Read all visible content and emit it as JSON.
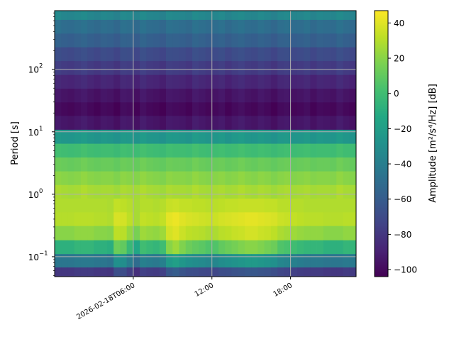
{
  "chart_data": {
    "type": "heatmap",
    "colormap": "viridis",
    "xlabel": "",
    "ylabel": "Period [s]",
    "colorbar_label": "Amplitude [m²/s⁴/Hz] [dB]",
    "xlim": [
      "2026-02-18T00:00",
      "2026-02-18T23:00"
    ],
    "ylim": [
      0.048,
      870
    ],
    "yscale": "log",
    "clim": [
      -104,
      47
    ],
    "grid": true,
    "x_ticks": [
      {
        "time": "2026-02-18T06:00",
        "label": "2026-02-18T06:00"
      },
      {
        "time": "2026-02-18T12:00",
        "label": "12:00"
      },
      {
        "time": "2026-02-18T18:00",
        "label": "18:00"
      }
    ],
    "y_ticks": [
      {
        "value": 100,
        "base": "10",
        "exp": "2"
      },
      {
        "value": 10,
        "base": "10",
        "exp": "1"
      },
      {
        "value": 1,
        "base": "10",
        "exp": "0"
      },
      {
        "value": 0.1,
        "base": "10",
        "exp": "−1"
      }
    ],
    "colorbar_ticks": [
      "40",
      "20",
      "0",
      "−20",
      "−40",
      "−60",
      "−80",
      "−100"
    ],
    "colorbar_tick_values": [
      40,
      20,
      0,
      -20,
      -40,
      -60,
      -80,
      -100
    ],
    "periods": [
      800,
      480,
      290,
      175,
      105,
      63,
      38,
      23,
      14,
      8.3,
      5.0,
      3.0,
      1.8,
      1.1,
      0.66,
      0.4,
      0.24,
      0.14,
      0.087,
      0.052
    ],
    "values": [
      [
        -33,
        -35,
        -36,
        -34,
        -32,
        -35,
        -37,
        -34,
        -35,
        -38,
        -33,
        -34,
        -37,
        -32,
        -35,
        -36,
        -38,
        -33,
        -34,
        -35,
        -37,
        -32,
        -34,
        -36,
        -35,
        -33,
        -37,
        -34,
        -32,
        -35,
        -36,
        -33,
        -35,
        -38,
        -34,
        -33,
        -36,
        -35,
        -33,
        -37,
        -34,
        -35,
        -36,
        -32,
        -35,
        -37
      ],
      [
        -48,
        -50,
        -51,
        -49,
        -47,
        -50,
        -52,
        -49,
        -50,
        -53,
        -48,
        -49,
        -52,
        -47,
        -50,
        -51,
        -53,
        -48,
        -49,
        -50,
        -52,
        -47,
        -49,
        -51,
        -50,
        -48,
        -52,
        -49,
        -47,
        -50,
        -51,
        -48,
        -50,
        -53,
        -49,
        -48,
        -51,
        -50,
        -48,
        -52,
        -49,
        -50,
        -51,
        -47,
        -50,
        -52
      ],
      [
        -56,
        -58,
        -59,
        -57,
        -55,
        -58,
        -60,
        -57,
        -58,
        -61,
        -56,
        -57,
        -60,
        -55,
        -58,
        -59,
        -61,
        -56,
        -57,
        -58,
        -60,
        -55,
        -57,
        -59,
        -58,
        -56,
        -60,
        -57,
        -55,
        -58,
        -59,
        -56,
        -58,
        -61,
        -57,
        -56,
        -59,
        -58,
        -56,
        -60,
        -57,
        -58,
        -59,
        -55,
        -58,
        -60
      ],
      [
        -68,
        -70,
        -71,
        -69,
        -67,
        -70,
        -72,
        -69,
        -70,
        -73,
        -68,
        -69,
        -72,
        -67,
        -70,
        -71,
        -73,
        -68,
        -69,
        -70,
        -72,
        -67,
        -69,
        -71,
        -70,
        -68,
        -72,
        -69,
        -67,
        -70,
        -71,
        -68,
        -70,
        -73,
        -69,
        -68,
        -71,
        -70,
        -68,
        -72,
        -69,
        -70,
        -71,
        -67,
        -70,
        -72
      ],
      [
        -76,
        -78,
        -79,
        -77,
        -75,
        -78,
        -80,
        -77,
        -78,
        -81,
        -76,
        -77,
        -80,
        -75,
        -78,
        -79,
        -81,
        -76,
        -77,
        -78,
        -80,
        -75,
        -77,
        -79,
        -78,
        -76,
        -80,
        -77,
        -75,
        -78,
        -79,
        -76,
        -78,
        -81,
        -77,
        -76,
        -79,
        -78,
        -76,
        -80,
        -77,
        -78,
        -79,
        -75,
        -78,
        -80
      ],
      [
        -86,
        -88,
        -89,
        -87,
        -85,
        -88,
        -90,
        -87,
        -88,
        -91,
        -86,
        -87,
        -90,
        -85,
        -88,
        -89,
        -91,
        -86,
        -87,
        -88,
        -90,
        -85,
        -87,
        -89,
        -88,
        -86,
        -90,
        -87,
        -85,
        -88,
        -89,
        -86,
        -88,
        -91,
        -87,
        -86,
        -89,
        -88,
        -86,
        -90,
        -87,
        -88,
        -89,
        -85,
        -88,
        -90
      ],
      [
        -94,
        -96,
        -97,
        -95,
        -93,
        -96,
        -98,
        -95,
        -96,
        -99,
        -94,
        -95,
        -98,
        -93,
        -96,
        -97,
        -99,
        -94,
        -95,
        -96,
        -98,
        -93,
        -95,
        -97,
        -96,
        -94,
        -98,
        -95,
        -93,
        -96,
        -97,
        -94,
        -96,
        -99,
        -95,
        -94,
        -97,
        -96,
        -94,
        -98,
        -95,
        -96,
        -97,
        -93,
        -96,
        -98
      ],
      [
        -99,
        -101,
        -102,
        -100,
        -98,
        -101,
        -103,
        -100,
        -101,
        -104,
        -99,
        -100,
        -103,
        -98,
        -101,
        -102,
        -104,
        -99,
        -100,
        -101,
        -103,
        -98,
        -100,
        -102,
        -101,
        -99,
        -103,
        -100,
        -98,
        -101,
        -102,
        -99,
        -101,
        -104,
        -100,
        -99,
        -102,
        -101,
        -99,
        -103,
        -100,
        -101,
        -102,
        -98,
        -101,
        -103
      ],
      [
        -93,
        -95,
        -96,
        -94,
        -92,
        -95,
        -97,
        -94,
        -95,
        -98,
        -93,
        -94,
        -97,
        -92,
        -95,
        -96,
        -98,
        -93,
        -94,
        -95,
        -97,
        -92,
        -94,
        -96,
        -95,
        -93,
        -97,
        -94,
        -92,
        -95,
        -96,
        -93,
        -95,
        -98,
        -94,
        -93,
        -96,
        -95,
        -93,
        -97,
        -94,
        -95,
        -96,
        -92,
        -95,
        -97
      ],
      [
        -23,
        -25,
        -26,
        -24,
        -22,
        -25,
        -27,
        -24,
        -25,
        -28,
        -23,
        -24,
        -27,
        -22,
        -25,
        -26,
        -28,
        -23,
        -24,
        -25,
        -27,
        -22,
        -24,
        -26,
        -25,
        -23,
        -27,
        -24,
        -22,
        -25,
        -26,
        -23,
        -25,
        -28,
        -24,
        -23,
        -26,
        -25,
        -23,
        -27,
        -24,
        -25,
        -26,
        -22,
        -25,
        -27
      ],
      [
        1,
        0,
        -1,
        0,
        2,
        0,
        -1,
        0,
        0,
        -2,
        1,
        0,
        -1,
        2,
        0,
        -1,
        -2,
        1,
        0,
        0,
        -1,
        2,
        0,
        -1,
        0,
        1,
        -1,
        0,
        2,
        0,
        -1,
        1,
        0,
        -2,
        0,
        1,
        -1,
        0,
        1,
        -1,
        0,
        0,
        -1,
        2,
        0,
        -1
      ],
      [
        13,
        12,
        11,
        12,
        14,
        12,
        11,
        12,
        12,
        10,
        13,
        12,
        11,
        14,
        12,
        11,
        10,
        13,
        12,
        12,
        11,
        14,
        12,
        11,
        12,
        13,
        11,
        12,
        14,
        12,
        11,
        13,
        12,
        10,
        12,
        13,
        11,
        12,
        13,
        11,
        12,
        12,
        11,
        14,
        12,
        11
      ],
      [
        21,
        20,
        19,
        20,
        22,
        20,
        19,
        20,
        20,
        18,
        21,
        20,
        19,
        22,
        20,
        19,
        18,
        21,
        20,
        20,
        19,
        22,
        20,
        19,
        20,
        21,
        19,
        20,
        22,
        20,
        19,
        21,
        20,
        18,
        20,
        21,
        19,
        20,
        21,
        19,
        20,
        20,
        19,
        22,
        20,
        19
      ],
      [
        28,
        27,
        26,
        27,
        29,
        27,
        26,
        27,
        27,
        25,
        28,
        27,
        26,
        29,
        27,
        26,
        25,
        28,
        27,
        27,
        26,
        29,
        27,
        26,
        27,
        28,
        26,
        27,
        29,
        27,
        26,
        28,
        27,
        25,
        27,
        28,
        26,
        27,
        28,
        26,
        27,
        27,
        26,
        29,
        27,
        26
      ],
      [
        29,
        29,
        29,
        29,
        29,
        29,
        29,
        29,
        28,
        33,
        32,
        30,
        27,
        30,
        30,
        29,
        30,
        34,
        35,
        33,
        33,
        32,
        32,
        31,
        31,
        32,
        33,
        33,
        34,
        34,
        34,
        34,
        33,
        33,
        31,
        31,
        30,
        30,
        29,
        29,
        29,
        29,
        29,
        29,
        29,
        29
      ],
      [
        30,
        30,
        30,
        31,
        31,
        31,
        30,
        30,
        29,
        38,
        37,
        32,
        27,
        33,
        32,
        31,
        33,
        41,
        43,
        40,
        38,
        37,
        36,
        35,
        35,
        37,
        38,
        39,
        40,
        41,
        41,
        40,
        39,
        38,
        35,
        34,
        33,
        32,
        31,
        31,
        31,
        30,
        30,
        30,
        31,
        31
      ],
      [
        20,
        20,
        20,
        22,
        22,
        22,
        20,
        20,
        19,
        32,
        31,
        23,
        16,
        25,
        23,
        22,
        25,
        37,
        40,
        35,
        32,
        31,
        30,
        28,
        28,
        31,
        32,
        34,
        35,
        37,
        37,
        35,
        34,
        32,
        28,
        26,
        25,
        23,
        22,
        22,
        22,
        20,
        20,
        20,
        22,
        22
      ],
      [
        -8,
        -8,
        -8,
        -5,
        -5,
        -5,
        -8,
        -8,
        -10,
        13,
        10,
        -3,
        -15,
        0,
        -3,
        -5,
        0,
        20,
        25,
        18,
        13,
        10,
        8,
        5,
        5,
        10,
        13,
        15,
        18,
        20,
        20,
        18,
        15,
        13,
        5,
        3,
        0,
        -3,
        -5,
        -5,
        -5,
        -8,
        -8,
        -8,
        -5,
        -5
      ],
      [
        -45,
        -45,
        -45,
        -43,
        -43,
        -43,
        -45,
        -45,
        -47,
        -29,
        -31,
        -41,
        -51,
        -39,
        -41,
        -43,
        -39,
        -23,
        -19,
        -25,
        -29,
        -31,
        -33,
        -35,
        -35,
        -31,
        -29,
        -27,
        -25,
        -23,
        -23,
        -25,
        -27,
        -29,
        -35,
        -37,
        -39,
        -41,
        -43,
        -43,
        -43,
        -45,
        -45,
        -45,
        -43,
        -43
      ],
      [
        -80,
        -80,
        -80,
        -78,
        -78,
        -78,
        -80,
        -80,
        -81,
        -68,
        -69,
        -77,
        -84,
        -75,
        -77,
        -78,
        -75,
        -63,
        -60,
        -65,
        -68,
        -69,
        -71,
        -72,
        -72,
        -69,
        -68,
        -66,
        -65,
        -63,
        -63,
        -65,
        -66,
        -68,
        -72,
        -74,
        -75,
        -77,
        -78,
        -78,
        -78,
        -80,
        -80,
        -80,
        -78,
        -78
      ]
    ]
  }
}
